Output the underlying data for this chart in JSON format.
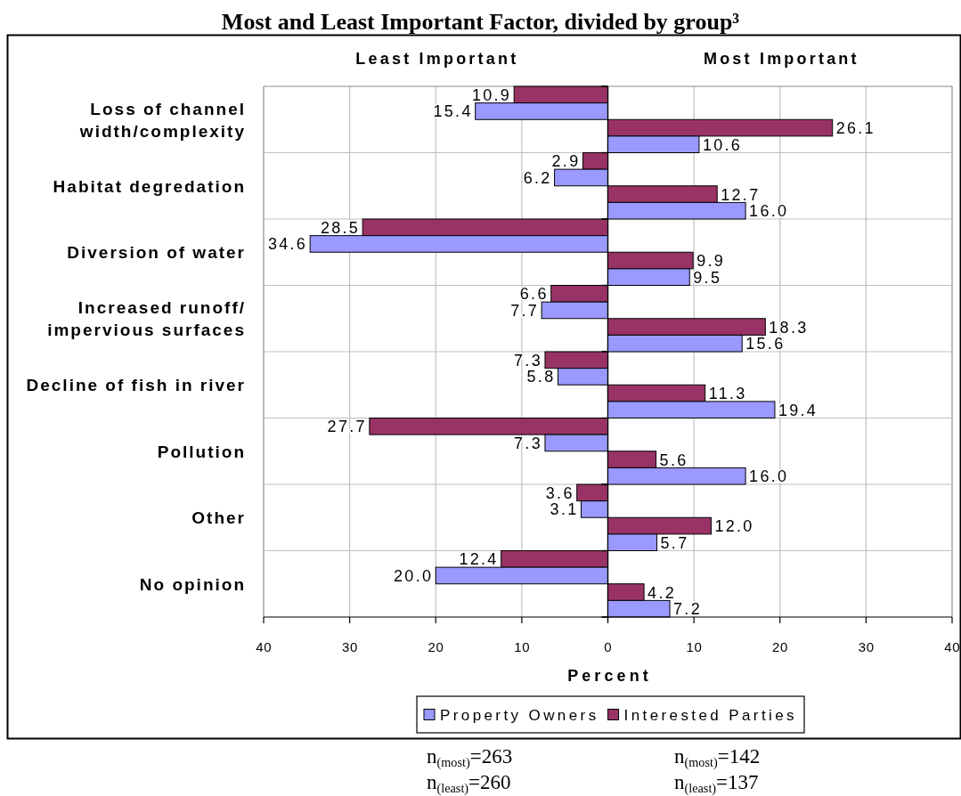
{
  "chart_data": [
    {
      "type": "bar",
      "orientation": "horizontal",
      "title": "Most and Least Important Factor, divided by group³",
      "subtitle": "Least Important",
      "xlabel": "Percent",
      "categories": [
        "Loss of channel\nwidth/complexity",
        "Habitat degredation",
        "Diversion of water",
        "Increased runoff/\nimpervious surfaces",
        "Decline of fish in river",
        "Pollution",
        "Other",
        "No opinion"
      ],
      "series": [
        {
          "name": "Interested Parties",
          "color": "#993366",
          "values": [
            10.9,
            2.9,
            28.5,
            6.6,
            7.3,
            27.7,
            3.6,
            12.4
          ],
          "value_labels": [
            "10.9",
            "2.9",
            "28.5",
            "6.6",
            "7.3",
            "27.7",
            "3.6",
            "12.4"
          ]
        },
        {
          "name": "Property Owners",
          "color": "#9999ff",
          "values": [
            15.4,
            6.2,
            34.6,
            7.7,
            5.8,
            7.3,
            3.1,
            20.0
          ],
          "value_labels": [
            "15.4",
            "6.2",
            "34.6",
            "7.7",
            "5.8",
            "7.3",
            "3.1",
            "20.0"
          ]
        }
      ],
      "xlim": [
        40,
        0
      ],
      "xticks": [
        40,
        30,
        20,
        10,
        {
          "value": 0,
          "label": null
        }
      ],
      "grid": true,
      "legend": "bottom",
      "annotations": [
        "n$_{(most)}$=263",
        "n$_{(most)}$=142",
        "n$_{(least)}$=260",
        "n$_{(least)}$=137"
      ]
    },
    {
      "type": "bar",
      "orientation": "horizontal",
      "subtitle": "Most Important",
      "series": [
        {
          "color": "#993366",
          "values": [
            26.1,
            12.7,
            9.9,
            18.3,
            11.3,
            5.6,
            12.0,
            4.2
          ],
          "value_labels": [
            "26.1",
            "12.7",
            "9.9",
            "18.3",
            "11.3",
            "5.6",
            "12.0",
            "4.2"
          ]
        },
        {
          "color": "#9999ff",
          "values": [
            10.6,
            16.0,
            9.5,
            15.6,
            19.4,
            16.0,
            5.7,
            7.2
          ],
          "value_labels": [
            "10.6",
            "16.0",
            "9.5",
            "15.6",
            "19.4",
            "16.0",
            "5.7",
            "7.2"
          ]
        }
      ],
      "xlim": [
        0,
        40
      ],
      "xticks": [
        0,
        10,
        20,
        30,
        40
      ],
      "grid": true
    }
  ]
}
